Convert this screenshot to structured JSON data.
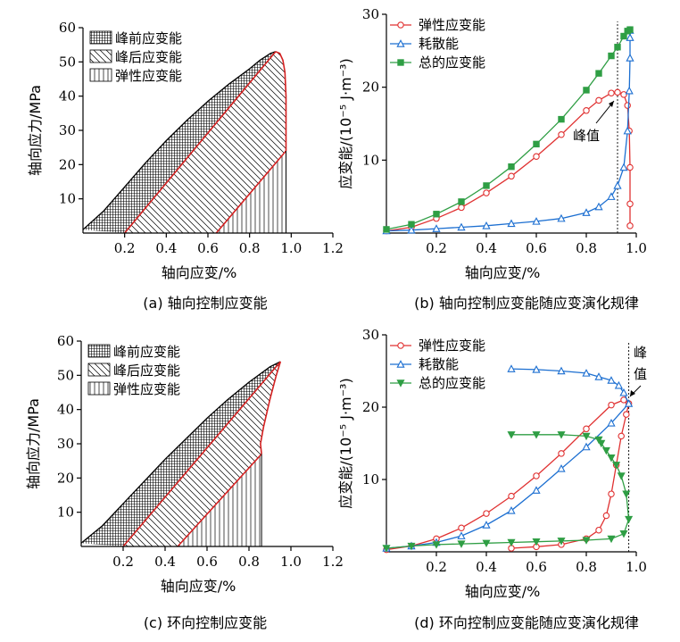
{
  "chart_data": [
    {
      "type": "area",
      "panel": "a",
      "caption": "(a) 轴向控制应变能",
      "xlabel": "轴向应变/%",
      "ylabel": "轴向应力/MPa",
      "xlim": [
        0,
        1.2
      ],
      "ylim": [
        0,
        60
      ],
      "xticks": [
        "0.2",
        "0.4",
        "0.6",
        "0.8",
        "1.0",
        "1.2"
      ],
      "yticks": [
        "10",
        "20",
        "30",
        "40",
        "50",
        "60"
      ],
      "legend": [
        "峰前应变能",
        "峰后应变能",
        "弹性应变能"
      ],
      "legend_position": "top-left",
      "loading_curve": {
        "x": [
          0.0,
          0.1,
          0.2,
          0.3,
          0.4,
          0.5,
          0.6,
          0.7,
          0.8,
          0.85,
          0.9,
          0.925
        ],
        "y": [
          1.0,
          6.5,
          13.5,
          20.5,
          27.0,
          33.0,
          38.5,
          43.5,
          48.0,
          50.5,
          52.5,
          53.0
        ]
      },
      "post_peak_curve": {
        "x": [
          0.925,
          0.945,
          0.96,
          0.97,
          0.975,
          0.975
        ],
        "y": [
          53.0,
          52.5,
          50.5,
          47.0,
          40.0,
          24.0
        ]
      },
      "unloading_at_peak": {
        "x": [
          0.2,
          0.925
        ],
        "y": [
          0,
          53.0
        ]
      },
      "unloading_at_end": {
        "x": [
          0.64,
          0.975
        ],
        "y": [
          0,
          24.0
        ]
      }
    },
    {
      "type": "line",
      "panel": "b",
      "caption": "(b) 轴向控制应变能随应变演化规律",
      "xlabel": "轴向应变/%",
      "ylabel": "应变能/(10⁻⁵ J·m⁻³)",
      "xlim": [
        0,
        1.0
      ],
      "ylim": [
        0,
        30
      ],
      "xticks": [
        "0.2",
        "0.4",
        "0.6",
        "0.8",
        "1.0"
      ],
      "yticks": [
        "10",
        "20",
        "30"
      ],
      "legend_position": "top-left",
      "annotation": "峰值",
      "peak_x": 0.925,
      "series": [
        {
          "name": "弹性应变能",
          "color": "#e03131",
          "marker": "circle",
          "x": [
            0.0,
            0.1,
            0.2,
            0.3,
            0.4,
            0.5,
            0.6,
            0.7,
            0.8,
            0.85,
            0.9,
            0.925,
            0.95,
            0.965,
            0.972,
            0.975,
            0.975,
            0.975
          ],
          "y": [
            0.3,
            0.8,
            2.0,
            3.5,
            5.5,
            7.8,
            10.5,
            13.5,
            16.8,
            18.2,
            19.2,
            19.3,
            19.0,
            17.5,
            14.0,
            9.0,
            4.0,
            1.0
          ]
        },
        {
          "name": "耗散能",
          "color": "#1c6fd1",
          "marker": "triangle",
          "x": [
            0.0,
            0.1,
            0.2,
            0.3,
            0.4,
            0.5,
            0.6,
            0.7,
            0.8,
            0.85,
            0.9,
            0.925,
            0.95,
            0.965,
            0.972,
            0.975,
            0.975,
            0.975
          ],
          "y": [
            0.3,
            0.4,
            0.6,
            0.8,
            1.0,
            1.3,
            1.6,
            2.0,
            2.8,
            3.6,
            5.0,
            6.5,
            9.0,
            14.0,
            19.5,
            24.0,
            26.8,
            27.8
          ]
        },
        {
          "name": "总的应变能",
          "color": "#2f9e44",
          "marker": "square",
          "x": [
            0.0,
            0.1,
            0.2,
            0.3,
            0.4,
            0.5,
            0.6,
            0.7,
            0.8,
            0.85,
            0.9,
            0.925,
            0.95,
            0.965,
            0.975
          ],
          "y": [
            0.5,
            1.2,
            2.6,
            4.3,
            6.5,
            9.1,
            12.2,
            15.6,
            19.6,
            21.9,
            24.3,
            25.5,
            27.0,
            27.7,
            27.9
          ]
        }
      ]
    },
    {
      "type": "area",
      "panel": "c",
      "caption": "(c) 环向控制应变能",
      "xlabel": "轴向应变/%",
      "ylabel": "轴向应力/MPa",
      "xlim": [
        0,
        1.2
      ],
      "ylim": [
        0,
        60
      ],
      "xticks": [
        "0.2",
        "0.4",
        "0.6",
        "0.8",
        "1.0",
        "1.2"
      ],
      "yticks": [
        "10",
        "20",
        "30",
        "40",
        "50",
        "60"
      ],
      "legend": [
        "峰前应变能",
        "峰后应变能",
        "弹性应变能"
      ],
      "legend_position": "top-left",
      "loading_curve": {
        "x": [
          0.0,
          0.1,
          0.2,
          0.3,
          0.4,
          0.5,
          0.6,
          0.7,
          0.8,
          0.9,
          0.95
        ],
        "y": [
          1.0,
          6.0,
          12.5,
          19.0,
          25.5,
          31.5,
          37.5,
          43.0,
          48.0,
          52.5,
          54.0
        ]
      },
      "post_peak_curve": {
        "x": [
          0.95,
          0.93,
          0.9,
          0.87,
          0.855,
          0.86
        ],
        "y": [
          54.0,
          50.0,
          43.0,
          35.0,
          30.0,
          27.0
        ]
      },
      "unloading_at_peak": {
        "x": [
          0.2,
          0.95
        ],
        "y": [
          0,
          54.0
        ]
      },
      "unloading_at_end": {
        "x": [
          0.46,
          0.86
        ],
        "y": [
          0,
          27.0
        ]
      }
    },
    {
      "type": "line",
      "panel": "d",
      "caption": "(d) 环向控制应变能随应变演化规律",
      "xlabel": "轴向应变/%",
      "ylabel": "应变能/(10⁻⁵ J·m⁻³)",
      "xlim": [
        0,
        1.0
      ],
      "ylim": [
        0,
        30
      ],
      "xticks": [
        "0.2",
        "0.4",
        "0.6",
        "0.8",
        "1.0"
      ],
      "yticks": [
        "10",
        "20",
        "30"
      ],
      "legend_position": "top-left",
      "annotation": "峰值",
      "peak_x": 0.97,
      "series": [
        {
          "name": "弹性应变能",
          "color": "#e03131",
          "marker": "circle",
          "x": [
            0.0,
            0.1,
            0.2,
            0.3,
            0.4,
            0.5,
            0.6,
            0.7,
            0.8,
            0.9,
            0.95,
            0.97,
            0.96,
            0.94,
            0.92,
            0.9,
            0.88,
            0.85,
            0.8,
            0.7,
            0.6,
            0.5
          ],
          "y": [
            0.3,
            0.8,
            1.8,
            3.3,
            5.3,
            7.7,
            10.5,
            13.6,
            17.0,
            20.3,
            21.0,
            20.5,
            19.0,
            16.0,
            12.0,
            8.0,
            5.0,
            3.0,
            1.8,
            1.0,
            0.7,
            0.5
          ]
        },
        {
          "name": "耗散能",
          "color": "#1c6fd1",
          "marker": "triangle",
          "x": [
            0.0,
            0.1,
            0.2,
            0.3,
            0.4,
            0.5,
            0.6,
            0.7,
            0.8,
            0.9,
            0.97,
            0.95,
            0.93,
            0.9,
            0.85,
            0.8,
            0.7,
            0.6,
            0.5
          ],
          "y": [
            0.5,
            0.8,
            1.3,
            2.2,
            3.7,
            5.7,
            8.5,
            11.5,
            14.5,
            17.8,
            20.5,
            22.0,
            23.0,
            23.7,
            24.2,
            24.7,
            25.0,
            25.2,
            25.3
          ]
        },
        {
          "name": "总的应变能",
          "color": "#2f9e44",
          "marker": "triangle-down",
          "x": [
            0.0,
            0.1,
            0.2,
            0.3,
            0.4,
            0.5,
            0.6,
            0.7,
            0.8,
            0.9,
            0.95,
            0.97,
            0.96,
            0.94,
            0.92,
            0.9,
            0.88,
            0.86,
            0.85,
            0.8,
            0.7,
            0.6,
            0.5
          ],
          "y": [
            0.5,
            0.8,
            1.0,
            1.1,
            1.2,
            1.3,
            1.4,
            1.5,
            1.6,
            1.8,
            2.5,
            4.5,
            8.0,
            10.5,
            12.0,
            13.0,
            14.0,
            15.0,
            15.5,
            16.0,
            16.2,
            16.2,
            16.2
          ]
        }
      ]
    }
  ]
}
